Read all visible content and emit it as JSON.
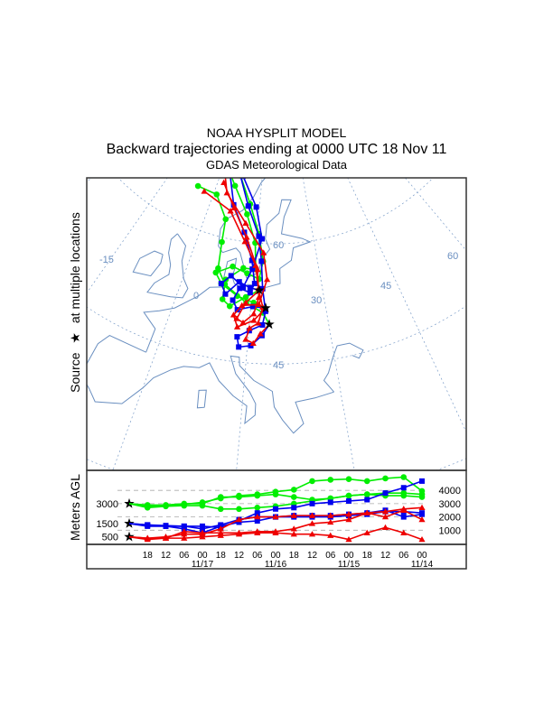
{
  "header": {
    "line1": "NOAA HYSPLIT MODEL",
    "line2": "Backward trajectories ending at 0000 UTC 18 Nov 11",
    "line3": "GDAS Meteorological Data"
  },
  "map": {
    "side_label_left": "Source",
    "side_label_star": "★",
    "side_label_right": "at multiple locations",
    "graticule_labels": [
      "-15",
      "0",
      "60",
      "30",
      "45",
      "60",
      "45"
    ],
    "colors": {
      "green": "#00ee00",
      "blue": "#0000ee",
      "red": "#ee0000",
      "coast": "#6a8fc0"
    },
    "sources": [
      {
        "lat": 49.8,
        "lon": 18.8
      },
      {
        "lat": 51.8,
        "lon": 18.0
      },
      {
        "lat": 54.0,
        "lon": 16.5
      }
    ],
    "trajectories": [
      {
        "color": "green",
        "marker": "circle",
        "points": [
          [
            49.8,
            18.8
          ],
          [
            51.2,
            17.5
          ],
          [
            52.3,
            14
          ],
          [
            54.2,
            9
          ],
          [
            56,
            6.8
          ],
          [
            59.4,
            6.2
          ],
          [
            62.4,
            5.7
          ],
          [
            65.2,
            1
          ],
          [
            65.3,
            -5.5
          ]
        ]
      },
      {
        "color": "green",
        "marker": "circle",
        "points": [
          [
            51.8,
            18
          ],
          [
            52.4,
            15.5
          ],
          [
            53,
            12
          ],
          [
            54.2,
            8.2
          ],
          [
            55.4,
            6.5
          ],
          [
            56.6,
            10
          ],
          [
            56,
            13.5
          ],
          [
            55.4,
            16.3
          ],
          [
            57.7,
            17
          ],
          [
            61.2,
            15.5
          ],
          [
            65,
            12
          ],
          [
            68.5,
            7
          ]
        ]
      },
      {
        "color": "green",
        "marker": "circle",
        "points": [
          [
            54,
            16.5
          ],
          [
            53,
            13.8
          ],
          [
            51.6,
            10.8
          ],
          [
            52.3,
            9.1
          ],
          [
            54.8,
            9
          ],
          [
            56.6,
            12.5
          ],
          [
            56.6,
            15.4
          ],
          [
            60,
            14.7
          ],
          [
            63.6,
            11.5
          ],
          [
            67,
            6
          ],
          [
            68.5,
            3
          ]
        ]
      },
      {
        "color": "blue",
        "marker": "square",
        "points": [
          [
            49.8,
            18.8
          ],
          [
            48.4,
            17.5
          ],
          [
            47.1,
            15.6
          ],
          [
            46.8,
            13.5
          ],
          [
            48,
            13
          ],
          [
            48.9,
            15.1
          ],
          [
            49.7,
            17.5
          ],
          [
            51.4,
            18
          ],
          [
            54.2,
            17.2
          ],
          [
            57.7,
            16.6
          ],
          [
            60.9,
            15.5
          ],
          [
            64.7,
            11.5
          ],
          [
            68.5,
            7
          ]
        ]
      },
      {
        "color": "blue",
        "marker": "square",
        "points": [
          [
            51.8,
            18
          ],
          [
            51.9,
            15.4
          ],
          [
            51.3,
            12.4
          ],
          [
            52.4,
            11.2
          ],
          [
            54,
            12.3
          ],
          [
            53.6,
            14.6
          ],
          [
            54.8,
            15.4
          ],
          [
            57.7,
            14.3
          ],
          [
            61.2,
            11.5
          ],
          [
            64.5,
            7
          ],
          [
            68.5,
            3
          ]
        ]
      },
      {
        "color": "blue",
        "marker": "square",
        "points": [
          [
            54,
            16.5
          ],
          [
            54.2,
            14.5
          ],
          [
            54.8,
            12
          ],
          [
            53,
            9.5
          ],
          [
            54.2,
            8.2
          ],
          [
            55.4,
            10
          ],
          [
            54.2,
            13
          ],
          [
            56.6,
            14.6
          ],
          [
            60.6,
            16.4
          ],
          [
            64.7,
            14
          ],
          [
            68.5,
            8
          ]
        ]
      },
      {
        "color": "red",
        "marker": "triangle",
        "points": [
          [
            49.8,
            18.8
          ],
          [
            48.6,
            17.2
          ],
          [
            47.4,
            16
          ],
          [
            47.8,
            14.6
          ],
          [
            49.2,
            15.1
          ],
          [
            49.9,
            16.7
          ],
          [
            51.9,
            17.4
          ],
          [
            54.2,
            16.3
          ],
          [
            57.1,
            15.3
          ],
          [
            60,
            12
          ],
          [
            63.6,
            6.5
          ],
          [
            65,
            -3
          ]
        ]
      },
      {
        "color": "red",
        "marker": "triangle",
        "points": [
          [
            51.8,
            18
          ],
          [
            50.2,
            15.8
          ],
          [
            49.2,
            12.8
          ],
          [
            50.6,
            11.8
          ],
          [
            51.9,
            13.2
          ],
          [
            52.2,
            16.6
          ],
          [
            55.4,
            18.1
          ],
          [
            58.8,
            17
          ],
          [
            62.4,
            11.5
          ],
          [
            65.8,
            4
          ],
          [
            68.5,
            1
          ]
        ]
      },
      {
        "color": "red",
        "marker": "triangle",
        "points": [
          [
            54,
            16.5
          ],
          [
            52.3,
            13.9
          ],
          [
            50.2,
            12.5
          ],
          [
            49.8,
            13.8
          ],
          [
            51,
            15.7
          ],
          [
            53.1,
            16.5
          ],
          [
            56.6,
            15.8
          ],
          [
            60.6,
            12.3
          ],
          [
            64.1,
            7.3
          ],
          [
            67,
            2
          ]
        ]
      }
    ]
  },
  "chart_data": {
    "type": "line",
    "title": "",
    "ylabel": "Meters AGL",
    "xlabel": "",
    "x_hours_back": [
      0,
      6,
      12,
      18,
      24,
      30,
      36,
      42,
      48,
      54,
      60,
      66,
      72,
      78,
      84,
      90,
      96
    ],
    "x_tick_labels": [
      "18",
      "12",
      "06",
      "00",
      "18",
      "12",
      "06",
      "00",
      "18",
      "12",
      "06",
      "00",
      "18",
      "12",
      "06",
      "00"
    ],
    "x_date_labels": [
      {
        "label": "11/17",
        "hour": 24
      },
      {
        "label": "11/16",
        "hour": 48
      },
      {
        "label": "11/15",
        "hour": 72
      },
      {
        "label": "11/14",
        "hour": 96
      }
    ],
    "y_left_labels": [
      3000,
      1500,
      500
    ],
    "y_right_ticks": [
      4000,
      3000,
      2000,
      1000
    ],
    "ylim": [
      0,
      5100
    ],
    "grid": "dashed at right ticks",
    "series": [
      {
        "name": "green-1",
        "color": "green",
        "marker": "circle",
        "values": [
          3000,
          2800,
          2850,
          2950,
          3100,
          3400,
          3600,
          3700,
          3900,
          4050,
          4700,
          4800,
          4850,
          4700,
          4900,
          5000,
          3950
        ]
      },
      {
        "name": "green-2",
        "color": "green",
        "marker": "circle",
        "values": [
          3000,
          2900,
          2900,
          3000,
          3000,
          3500,
          3500,
          3600,
          3700,
          3500,
          3300,
          3400,
          3600,
          3700,
          3800,
          3800,
          3700
        ]
      },
      {
        "name": "green-3",
        "color": "green",
        "marker": "circle",
        "values": [
          3000,
          2700,
          2800,
          2850,
          2850,
          2600,
          2600,
          2700,
          2800,
          3000,
          3200,
          3400,
          3600,
          3700,
          3600,
          3600,
          3500
        ]
      },
      {
        "name": "blue-1",
        "color": "blue",
        "marker": "square",
        "values": [
          1500,
          1300,
          1300,
          1300,
          1300,
          1200,
          1700,
          2300,
          2600,
          2700,
          3000,
          3100,
          3200,
          3300,
          3800,
          4200,
          4700
        ]
      },
      {
        "name": "blue-2",
        "color": "blue",
        "marker": "square",
        "values": [
          1500,
          1400,
          1300,
          1100,
          800,
          1300,
          1600,
          1700,
          2000,
          2100,
          2100,
          2100,
          2200,
          2300,
          2500,
          2000,
          2200
        ]
      },
      {
        "name": "blue-3",
        "color": "blue",
        "marker": "square",
        "values": [
          1500,
          1400,
          1350,
          1300,
          1100,
          1400,
          1800,
          2000,
          2000,
          2000,
          2000,
          2000,
          2100,
          2200,
          2400,
          2400,
          2300
        ]
      },
      {
        "name": "red-1",
        "color": "red",
        "marker": "triangle",
        "values": [
          500,
          400,
          500,
          700,
          700,
          1100,
          1800,
          2000,
          2000,
          2100,
          2100,
          2100,
          2200,
          2300,
          2400,
          2600,
          2700
        ]
      },
      {
        "name": "red-2",
        "color": "red",
        "marker": "triangle",
        "values": [
          500,
          300,
          400,
          900,
          800,
          800,
          800,
          900,
          900,
          1100,
          1500,
          1600,
          1800,
          2300,
          2000,
          2500,
          1800
        ]
      },
      {
        "name": "red-3",
        "color": "red",
        "marker": "triangle",
        "values": [
          500,
          400,
          400,
          400,
          500,
          600,
          700,
          800,
          800,
          700,
          700,
          600,
          300,
          800,
          1200,
          800,
          300
        ]
      }
    ]
  }
}
